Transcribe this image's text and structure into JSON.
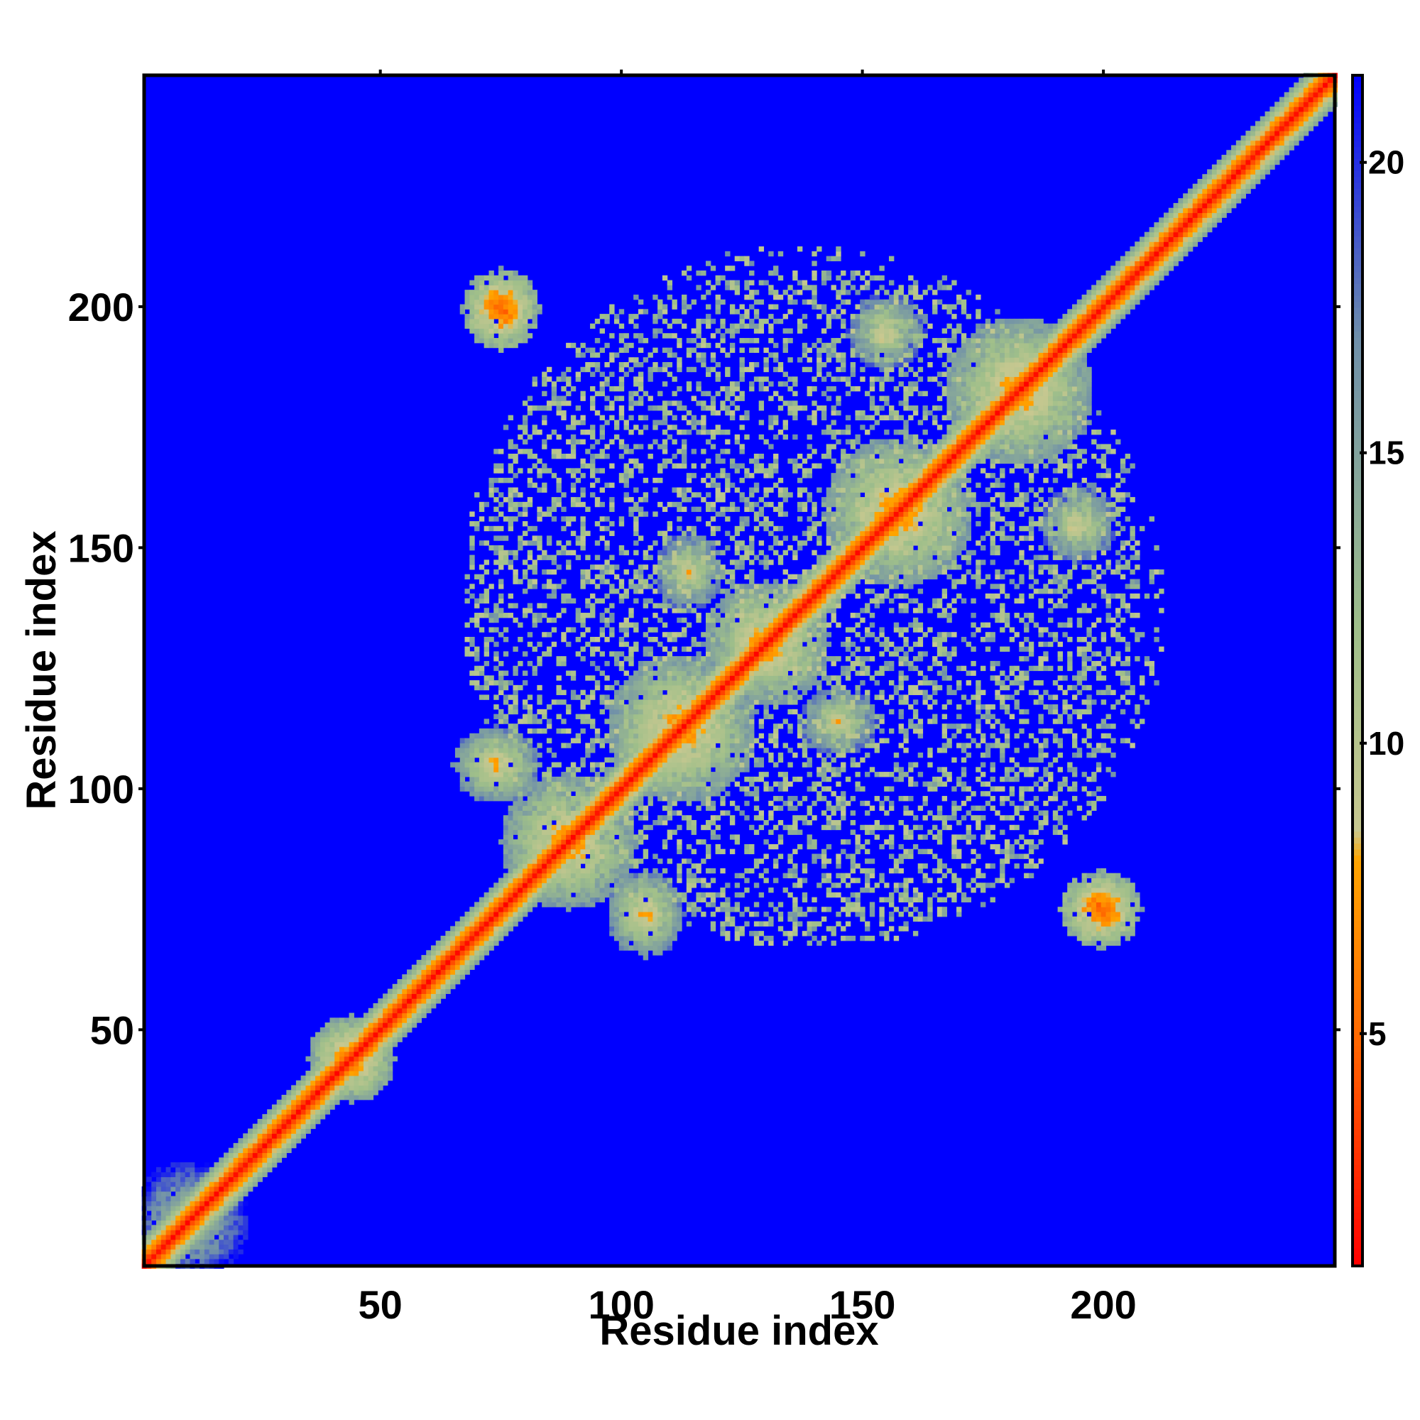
{
  "chart_data": {
    "type": "heatmap",
    "title": "",
    "xlabel": "Residue index",
    "ylabel": "Residue index",
    "x_range": [
      1,
      248
    ],
    "y_range": [
      1,
      248
    ],
    "xlim": [
      1,
      248
    ],
    "ylim": [
      1,
      248
    ],
    "x_ticks": [
      50,
      100,
      150,
      200
    ],
    "y_ticks": [
      50,
      100,
      150,
      200
    ],
    "x_tick_labels": [
      "50",
      "100",
      "150",
      "200"
    ],
    "y_tick_labels": [
      "50",
      "100",
      "150",
      "200"
    ],
    "colorbar": {
      "range": [
        1,
        21.5
      ],
      "ticks": [
        5,
        10,
        15,
        20
      ],
      "tick_labels": [
        "5",
        "10",
        "15",
        "20"
      ],
      "stops": [
        {
          "value": 1,
          "color": "#ff0000"
        },
        {
          "value": 5,
          "color": "#ff6a00"
        },
        {
          "value": 8,
          "color": "#ffa500"
        },
        {
          "value": 8.5,
          "color": "#c8c890"
        },
        {
          "value": 12,
          "color": "#9fbf8a"
        },
        {
          "value": 17,
          "color": "#6f8faa"
        },
        {
          "value": 21.5,
          "color": "#0000ff"
        }
      ]
    },
    "background_value": 21.5,
    "contact_regions": [
      {
        "x": [
          1,
          248
        ],
        "y": [
          1,
          248
        ],
        "kind": "main-diagonal",
        "min_value": 1
      },
      {
        "x": [
          1,
          20
        ],
        "y": [
          1,
          20
        ],
        "kind": "diagonal-band",
        "min_value": 10
      },
      {
        "x": [
          38,
          50
        ],
        "y": [
          38,
          50
        ],
        "kind": "cluster",
        "min_value": 4
      },
      {
        "x": [
          70,
          80
        ],
        "y": [
          194,
          204
        ],
        "kind": "cluster",
        "min_value": 3
      },
      {
        "x": [
          195,
          205
        ],
        "y": [
          70,
          80
        ],
        "kind": "cluster",
        "min_value": 3
      },
      {
        "x": [
          78,
          100
        ],
        "y": [
          78,
          100
        ],
        "kind": "cluster",
        "min_value": 5
      },
      {
        "x": [
          100,
          125
        ],
        "y": [
          100,
          125
        ],
        "kind": "cluster",
        "min_value": 5
      },
      {
        "x": [
          120,
          140
        ],
        "y": [
          120,
          140
        ],
        "kind": "cluster",
        "min_value": 5
      },
      {
        "x": [
          145,
          170
        ],
        "y": [
          145,
          170
        ],
        "kind": "cluster",
        "min_value": 5
      },
      {
        "x": [
          170,
          195
        ],
        "y": [
          170,
          195
        ],
        "kind": "cluster",
        "min_value": 5
      },
      {
        "x": [
          68,
          80
        ],
        "y": [
          100,
          110
        ],
        "kind": "cluster",
        "min_value": 6
      },
      {
        "x": [
          100,
          110
        ],
        "y": [
          68,
          80
        ],
        "kind": "cluster",
        "min_value": 6
      },
      {
        "x": [
          110,
          118
        ],
        "y": [
          140,
          150
        ],
        "kind": "cluster",
        "min_value": 7
      },
      {
        "x": [
          140,
          150
        ],
        "y": [
          110,
          118
        ],
        "kind": "cluster",
        "min_value": 7
      },
      {
        "x": [
          150,
          160
        ],
        "y": [
          190,
          200
        ],
        "kind": "cluster",
        "min_value": 7
      },
      {
        "x": [
          178,
          190
        ],
        "y": [
          178,
          190
        ],
        "kind": "cluster",
        "min_value": 4
      },
      {
        "x": [
          190,
          198
        ],
        "y": [
          150,
          158
        ],
        "kind": "cluster",
        "min_value": 7
      },
      {
        "x": [
          70,
          210
        ],
        "y": [
          70,
          205
        ],
        "kind": "diffuse-contacts",
        "min_value": 9
      }
    ],
    "grid": false,
    "legend": "none"
  }
}
